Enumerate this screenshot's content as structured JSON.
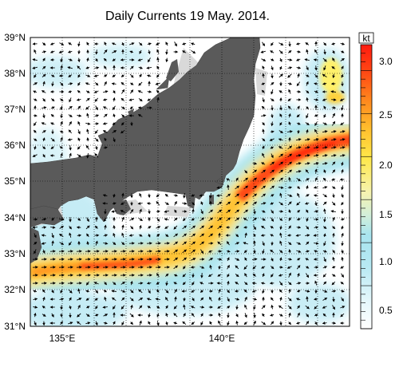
{
  "title": "Daily Currents 19 May. 2014.",
  "map": {
    "lat_range": [
      31,
      39
    ],
    "lon_range": [
      133.5,
      143.5
    ],
    "lat_ticks": [
      "39°N",
      "38°N",
      "37°N",
      "36°N",
      "35°N",
      "34°N",
      "33°N",
      "32°N",
      "31°N"
    ],
    "lon_ticks": [
      "135°E",
      "140°E"
    ]
  },
  "colorbar": {
    "unit": "kt",
    "ticks": [
      "3.0",
      "2.5",
      "2.0",
      "1.5",
      "1.0",
      "0.5"
    ],
    "range": [
      0,
      3.3
    ],
    "colors": [
      "#ffffff",
      "#e4f7fb",
      "#c2eef6",
      "#a8e4ef",
      "#cdeee0",
      "#f6f3b0",
      "#fff06a",
      "#ffd23c",
      "#ffb02a",
      "#ff7e1c",
      "#ff4a14",
      "#ff1a10"
    ]
  },
  "colors": {
    "land": "#5a5a5a",
    "shelf": "#d9d9d9",
    "arrow": "#000000",
    "kuroshio_core": "#ff4a14"
  }
}
